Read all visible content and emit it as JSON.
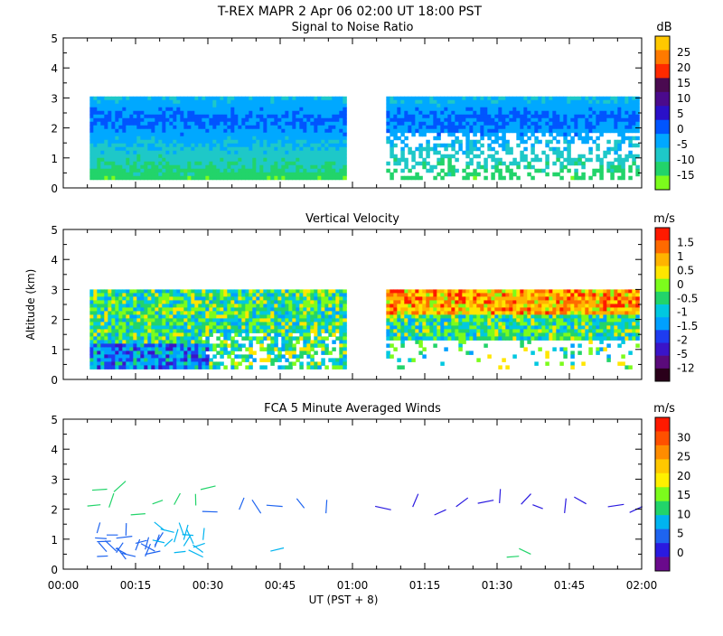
{
  "header": {
    "title": "T-REX  MAPR  2 Apr 06  02:00 UT  18:00  PST"
  },
  "chart_data": [
    {
      "type": "heatmap",
      "title": "Signal to Noise Ratio",
      "ylabel": "",
      "xlabel": "",
      "ylim": [
        0,
        5
      ],
      "yticks": [
        "0",
        "1",
        "2",
        "3",
        "4",
        "5"
      ],
      "data_extent_km": [
        0.35,
        3.05
      ],
      "gap_minutes": [
        58.5,
        66.5
      ],
      "colorbar": {
        "unit": "dB",
        "levels": [
          "-15",
          "-10",
          "-5",
          "0",
          "5",
          "10",
          "15",
          "20",
          "25"
        ],
        "colors": [
          "#7CFC1C",
          "#22D46A",
          "#1EC8C8",
          "#00A8FF",
          "#0055FF",
          "#2A10C8",
          "#4B0A8C",
          "#4A0A50",
          "#FF2A00",
          "#FF7A00",
          "#FFC800"
        ]
      }
    },
    {
      "type": "heatmap",
      "title": "Vertical Velocity",
      "ylabel": "Altitude (km)",
      "xlabel": "",
      "ylim": [
        0,
        5
      ],
      "yticks": [
        "0",
        "1",
        "2",
        "3",
        "4",
        "5"
      ],
      "data_extent_km": [
        0.35,
        3.0
      ],
      "gap_minutes": [
        58.5,
        66.5
      ],
      "colorbar": {
        "unit": "m/s",
        "levels": [
          "-12",
          "-5",
          "-2",
          "-1.5",
          "-1",
          "-0.5",
          "0",
          "0.5",
          "1",
          "1.5"
        ],
        "colors": [
          "#2A001A",
          "#5A0A7A",
          "#3A14C8",
          "#1E3CF0",
          "#00A0FF",
          "#00C8E0",
          "#22D46A",
          "#7CFC1C",
          "#FFE600",
          "#FFB400",
          "#FF6A00",
          "#FF1A00"
        ]
      }
    },
    {
      "type": "scatter",
      "title": "FCA 5 Minute Averaged Winds",
      "ylabel": "",
      "xlabel": "UT  (PST + 8)",
      "ylim": [
        0,
        5
      ],
      "yticks": [
        "0",
        "1",
        "2",
        "3",
        "4",
        "5"
      ],
      "xticks": [
        "00:00",
        "00:15",
        "00:30",
        "00:45",
        "01:00",
        "01:15",
        "01:30",
        "01:45",
        "02:00"
      ],
      "colorbar": {
        "unit": "m/s",
        "levels": [
          "0",
          "5",
          "10",
          "15",
          "20",
          "25",
          "30"
        ],
        "colors": [
          "#6A0A8C",
          "#2A1AE0",
          "#1E64F0",
          "#00B4F0",
          "#22D46A",
          "#7CFC1C",
          "#FFF000",
          "#FFC800",
          "#FF8C00",
          "#FF5000",
          "#FF1A00"
        ]
      }
    }
  ]
}
